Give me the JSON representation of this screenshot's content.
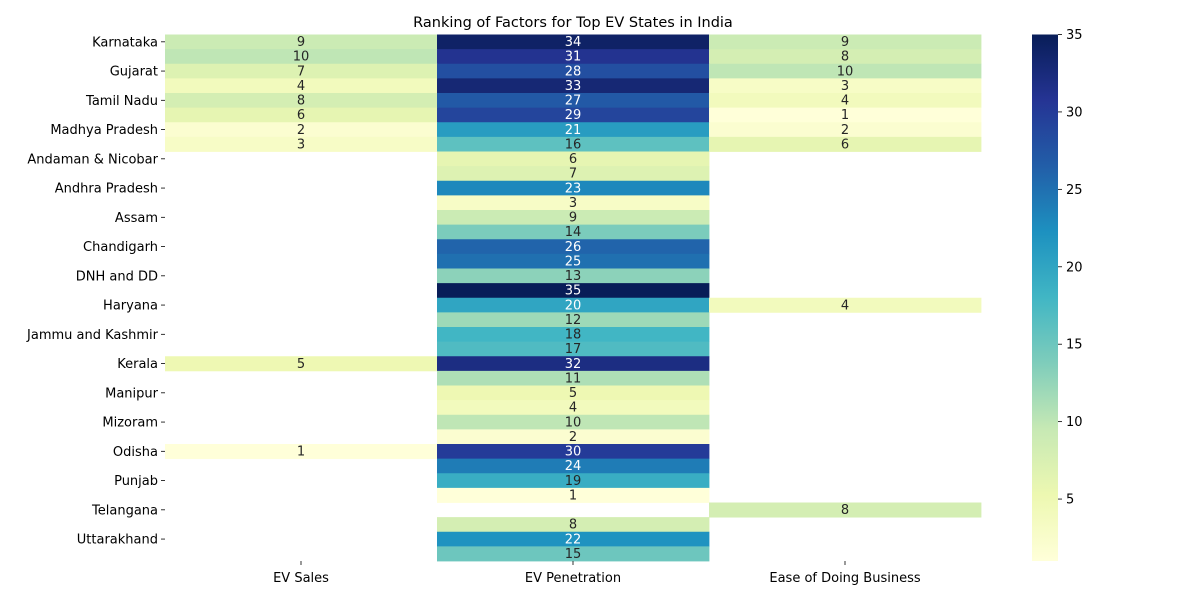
{
  "chart_data": {
    "type": "heatmap",
    "title": "Ranking of Factors for Top EV States in India",
    "columns": [
      "EV Sales",
      "EV Penetration",
      "Ease of Doing Business"
    ],
    "rows": [
      "Karnataka",
      "",
      "Gujarat",
      "",
      "Tamil Nadu",
      "",
      "Madhya Pradesh",
      "",
      "Andaman & Nicobar",
      "",
      "Andhra Pradesh",
      "",
      "Assam",
      "",
      "Chandigarh",
      "",
      "DNH and DD",
      "",
      "Haryana",
      "",
      "Jammu and Kashmir",
      "",
      "Kerala",
      "",
      "Manipur",
      "",
      "Mizoram",
      "",
      "Odisha",
      "",
      "Punjab",
      "",
      "Telangana",
      "",
      "Uttarakhand",
      ""
    ],
    "values": [
      [
        9,
        34,
        9
      ],
      [
        10,
        31,
        8
      ],
      [
        7,
        28,
        10
      ],
      [
        4,
        33,
        3
      ],
      [
        8,
        27,
        4
      ],
      [
        6,
        29,
        1
      ],
      [
        2,
        21,
        2
      ],
      [
        3,
        16,
        6
      ],
      [
        null,
        6,
        null
      ],
      [
        null,
        7,
        null
      ],
      [
        null,
        23,
        null
      ],
      [
        null,
        3,
        null
      ],
      [
        null,
        9,
        null
      ],
      [
        null,
        14,
        null
      ],
      [
        null,
        26,
        null
      ],
      [
        null,
        25,
        null
      ],
      [
        null,
        13,
        null
      ],
      [
        null,
        35,
        null
      ],
      [
        null,
        20,
        4
      ],
      [
        null,
        12,
        null
      ],
      [
        null,
        18,
        null
      ],
      [
        null,
        17,
        null
      ],
      [
        5,
        32,
        null
      ],
      [
        null,
        11,
        null
      ],
      [
        null,
        5,
        null
      ],
      [
        null,
        4,
        null
      ],
      [
        null,
        10,
        null
      ],
      [
        null,
        2,
        null
      ],
      [
        1,
        30,
        null
      ],
      [
        null,
        24,
        null
      ],
      [
        null,
        19,
        null
      ],
      [
        null,
        1,
        null
      ],
      [
        null,
        null,
        8
      ],
      [
        null,
        8,
        null
      ],
      [
        null,
        22,
        null
      ],
      [
        null,
        15,
        null
      ]
    ],
    "vmin": 1,
    "vmax": 35,
    "colorbar_ticks": [
      5,
      10,
      15,
      20,
      25,
      30,
      35
    ],
    "colormap": "YlGnBu",
    "colormap_stops": [
      "#ffffd9",
      "#edf8b1",
      "#c7e9b4",
      "#7fcdbb",
      "#41b6c4",
      "#1d91c0",
      "#225ea8",
      "#253494",
      "#081d58"
    ]
  }
}
